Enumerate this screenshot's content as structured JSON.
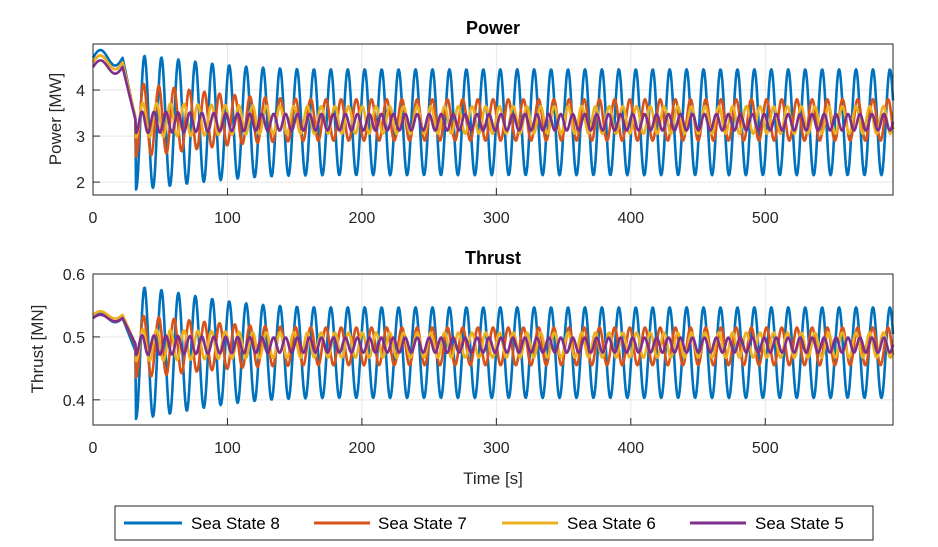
{
  "chart_data": [
    {
      "type": "line",
      "title": "Power",
      "xlabel": "",
      "ylabel": "Power [MW]",
      "xlim": [
        0,
        595
      ],
      "ylim": [
        1.72,
        5.0
      ],
      "xticks": [
        0,
        100,
        200,
        300,
        400,
        500
      ],
      "yticks": [
        2,
        3,
        4
      ],
      "xtick_labels": [
        "0",
        "100",
        "200",
        "300",
        "400",
        "500"
      ],
      "ytick_labels": [
        "2",
        "3",
        "4"
      ],
      "grid": true,
      "series": [
        {
          "name": "Sea State 8",
          "color": "#0072BD",
          "mean": 3.3,
          "amplitude": 1.15,
          "period": 12.6,
          "initial": 4.7,
          "transient_min": 1.75
        },
        {
          "name": "Sea State 7",
          "color": "#D95319",
          "mean": 3.35,
          "amplitude": 0.45,
          "period": 11.3,
          "initial": 4.6,
          "transient_min": 2.45
        },
        {
          "name": "Sea State 6",
          "color": "#EDB120",
          "mean": 3.35,
          "amplitude": 0.3,
          "period": 10.2,
          "initial": 4.6,
          "transient_min": 2.95
        },
        {
          "name": "Sea State 5",
          "color": "#7E2F8E",
          "mean": 3.3,
          "amplitude": 0.18,
          "period": 8.9,
          "initial": 4.5,
          "transient_min": 3.05
        }
      ]
    },
    {
      "type": "line",
      "title": "Thrust",
      "xlabel": "Time [s]",
      "ylabel": "Thrust [MN]",
      "xlim": [
        0,
        595
      ],
      "ylim": [
        0.36,
        0.6
      ],
      "xticks": [
        0,
        100,
        200,
        300,
        400,
        500
      ],
      "yticks": [
        0.4,
        0.5,
        0.6
      ],
      "xtick_labels": [
        "0",
        "100",
        "200",
        "300",
        "400",
        "500"
      ],
      "ytick_labels": [
        "0.4",
        "0.5",
        "0.6"
      ],
      "grid": true,
      "series": [
        {
          "name": "Sea State 8",
          "color": "#0072BD",
          "mean": 0.475,
          "amplitude": 0.072,
          "period": 12.6,
          "initial": 0.53,
          "transient_min": 0.36
        },
        {
          "name": "Sea State 7",
          "color": "#D95319",
          "mean": 0.485,
          "amplitude": 0.03,
          "period": 11.3,
          "initial": 0.53,
          "transient_min": 0.43
        },
        {
          "name": "Sea State 6",
          "color": "#EDB120",
          "mean": 0.487,
          "amplitude": 0.02,
          "period": 10.2,
          "initial": 0.535,
          "transient_min": 0.46
        },
        {
          "name": "Sea State 5",
          "color": "#7E2F8E",
          "mean": 0.487,
          "amplitude": 0.012,
          "period": 8.9,
          "initial": 0.53,
          "transient_min": 0.47
        }
      ]
    }
  ],
  "legend": {
    "placement": "bottom",
    "entries": [
      "Sea State 8",
      "Sea State 7",
      "Sea State 6",
      "Sea State 5"
    ],
    "colors": [
      "#0072BD",
      "#D95319",
      "#EDB120",
      "#7E2F8E"
    ]
  }
}
